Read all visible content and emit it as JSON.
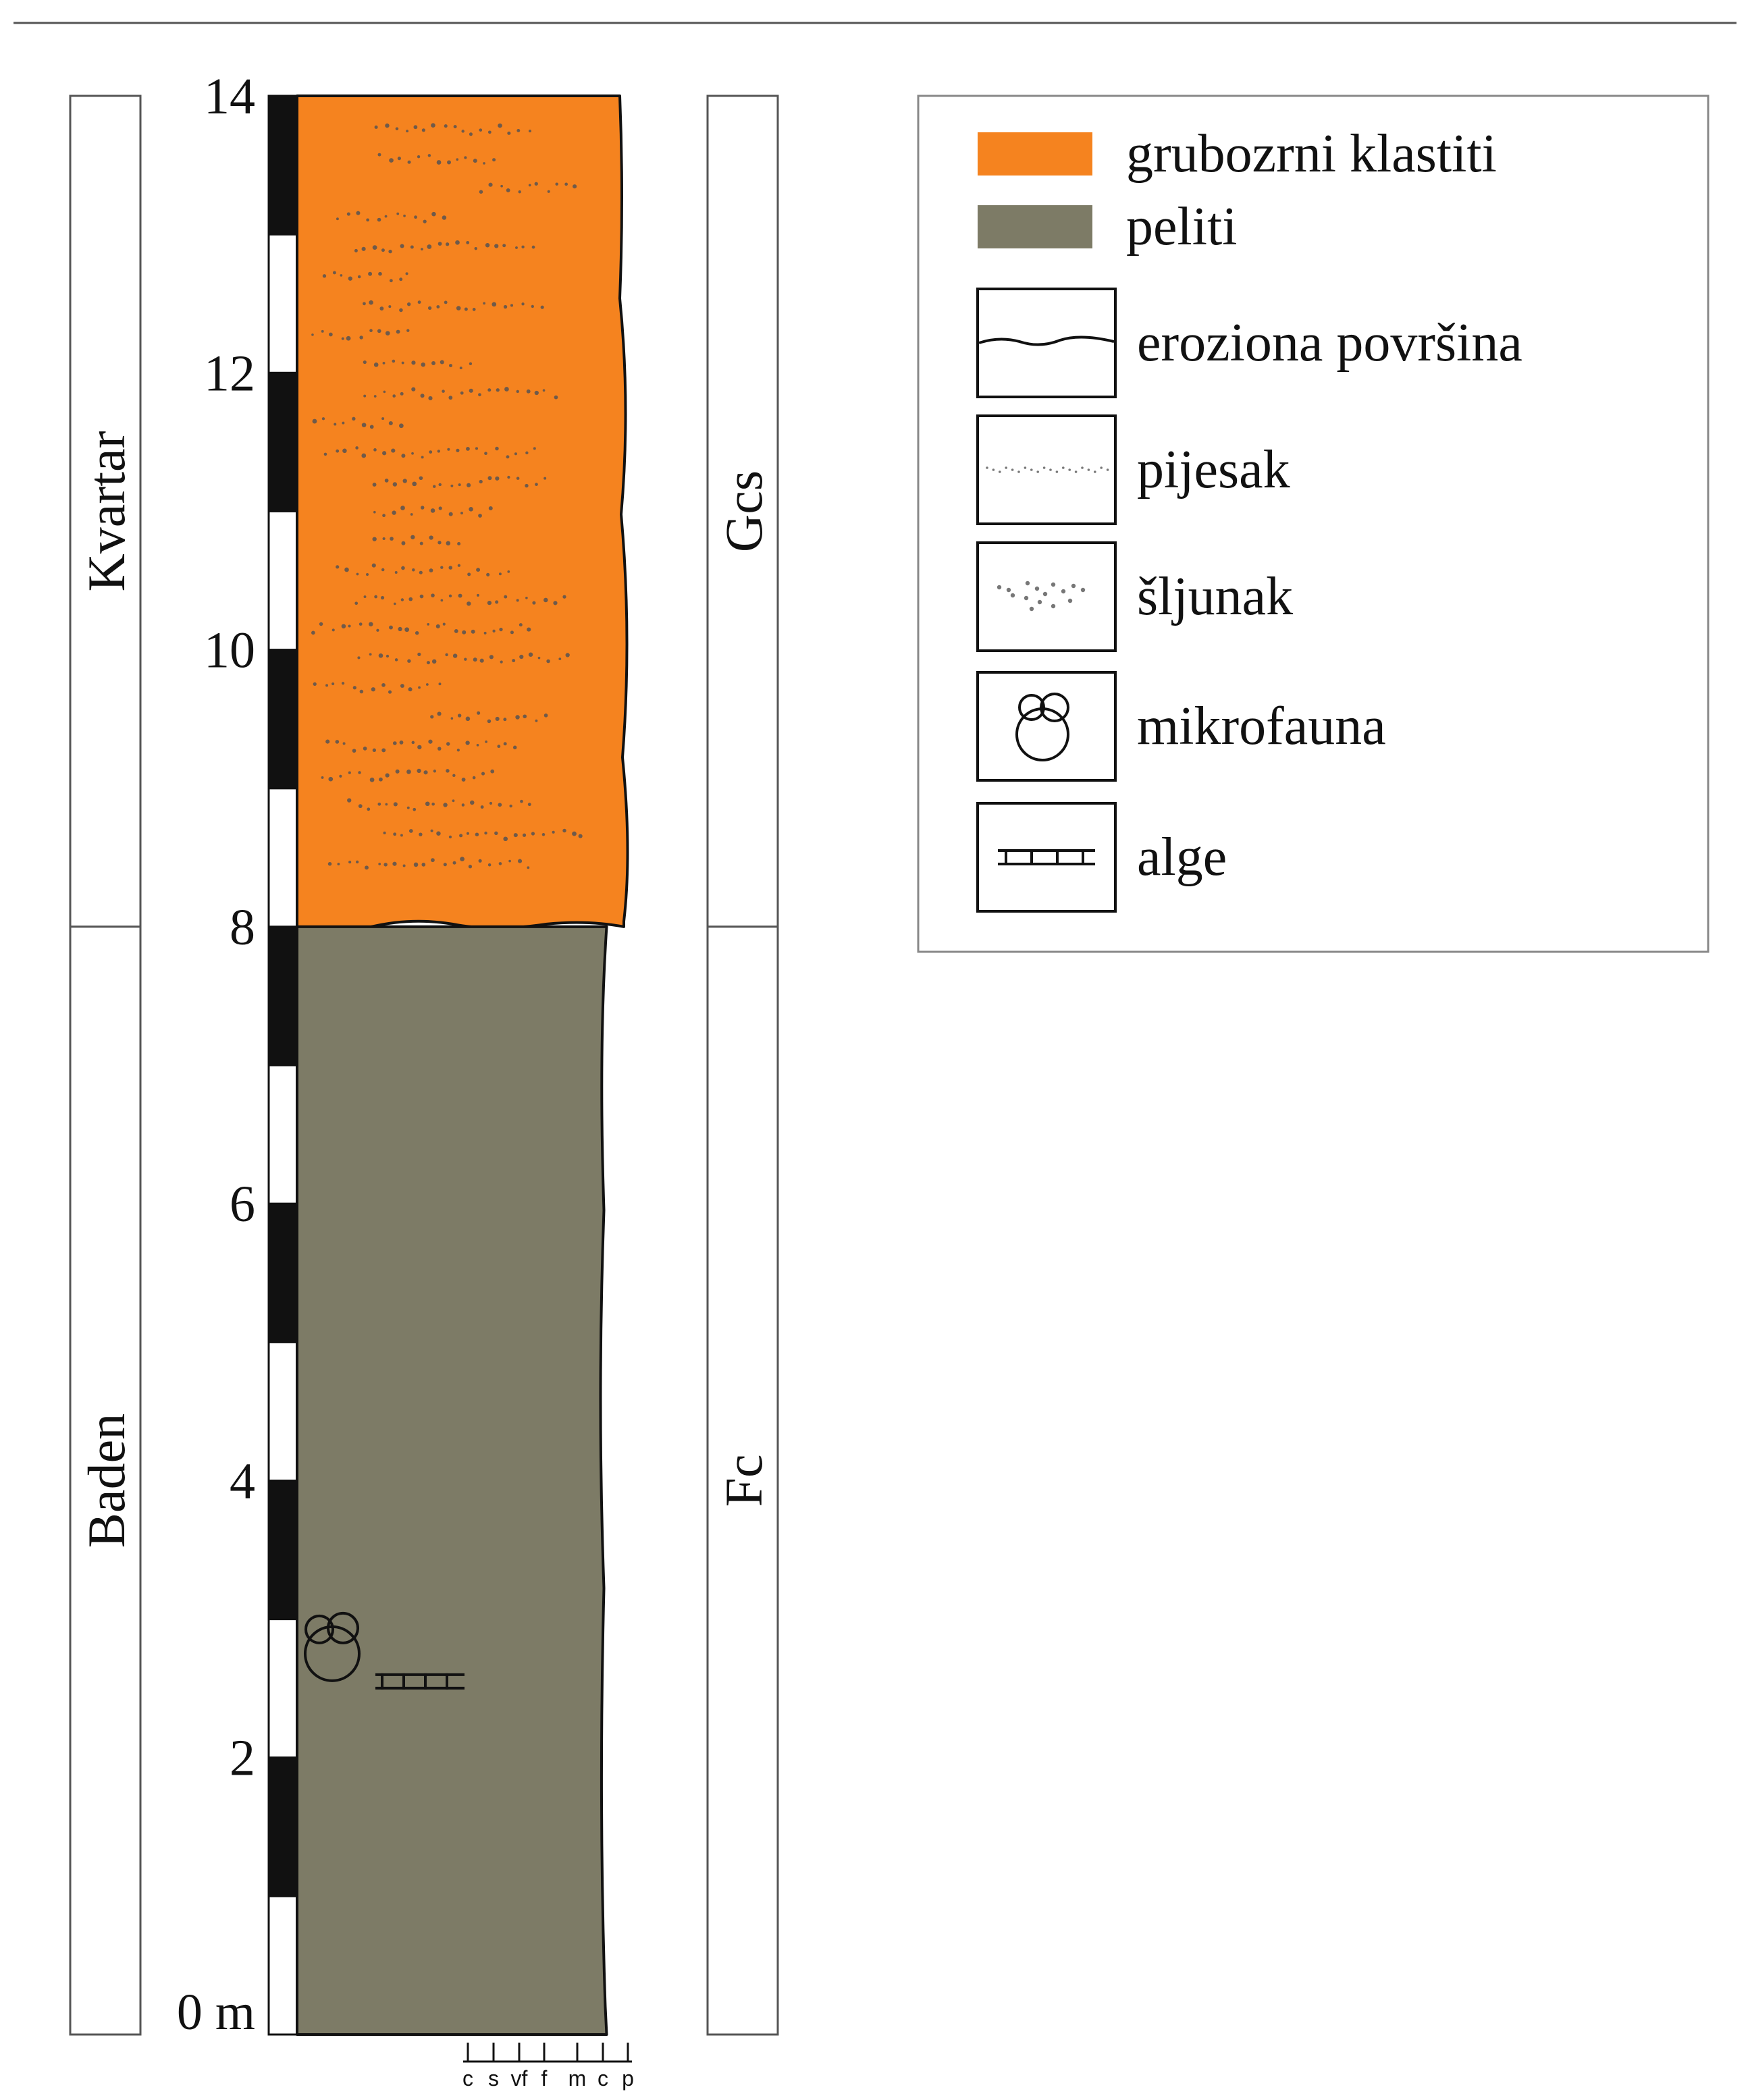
{
  "depth_axis": {
    "unit": "m",
    "min": 0,
    "max": 14,
    "ticks": [
      {
        "value": 0,
        "label": "0 m"
      },
      {
        "value": 2,
        "label": "2"
      },
      {
        "value": 4,
        "label": "4"
      },
      {
        "value": 6,
        "label": "6"
      },
      {
        "value": 8,
        "label": "8"
      },
      {
        "value": 10,
        "label": "10"
      },
      {
        "value": 12,
        "label": "12"
      },
      {
        "value": 14,
        "label": "14"
      }
    ]
  },
  "stratigraphy": [
    {
      "label": "Kvartar",
      "from": 8,
      "to": 14
    },
    {
      "label": "Baden",
      "from": 0,
      "to": 8
    }
  ],
  "facies": [
    {
      "label": "Gcs",
      "from": 8,
      "to": 14
    },
    {
      "label": "Fc",
      "from": 0,
      "to": 8
    }
  ],
  "lithology": [
    {
      "unit": "grubozrni klastiti",
      "from": 8,
      "to": 14,
      "grain_size": "p",
      "color": "#f5831f",
      "texture": [
        "pijesak",
        "šljunak"
      ]
    },
    {
      "unit": "peliti",
      "from": 0,
      "to": 8,
      "grain_size": "c",
      "color": "#7d7b66",
      "texture": []
    }
  ],
  "grain_size_scale": [
    "c",
    "s",
    "vf",
    "f",
    "m",
    "c",
    "p"
  ],
  "fossils": [
    {
      "type": "mikrofauna",
      "depth": 2.75
    },
    {
      "type": "alge",
      "depth": 2.55
    }
  ],
  "legend": {
    "items": [
      {
        "label": "grubozrni klastiti",
        "symbol": "swatch",
        "color": "#f5831f"
      },
      {
        "label": "peliti",
        "symbol": "swatch",
        "color": "#7d7b66"
      },
      {
        "label": "eroziona površina",
        "symbol": "erosion-surface-icon"
      },
      {
        "label": "pijesak",
        "symbol": "sand-icon"
      },
      {
        "label": "šljunak",
        "symbol": "gravel-icon"
      },
      {
        "label": "mikrofauna",
        "symbol": "microfauna-icon"
      },
      {
        "label": "alge",
        "symbol": "algae-icon"
      }
    ]
  }
}
